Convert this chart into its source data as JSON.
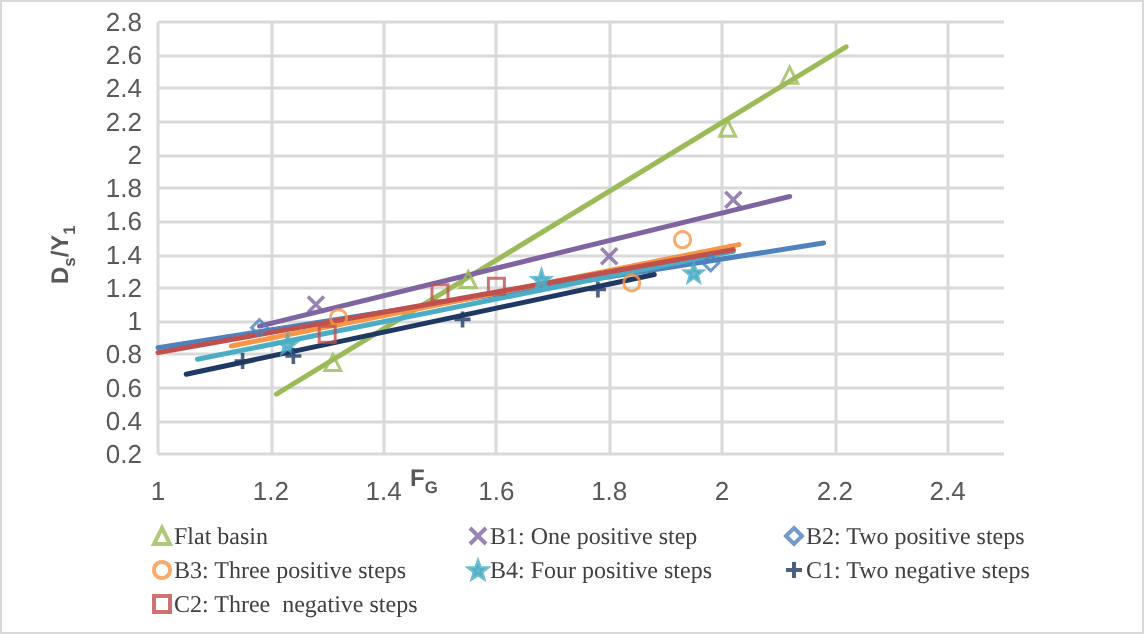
{
  "chart_data": {
    "type": "scatter",
    "xlabel": "F$_{G}$",
    "ylabel": "D$_{s}$/Y$_{1}$",
    "xlim": [
      1,
      2.5
    ],
    "xticks": [
      1,
      1.2,
      1.4,
      1.6,
      1.8,
      2,
      2.2,
      2.4
    ],
    "ylim": [
      0.2,
      2.8
    ],
    "yticks": [
      0.2,
      0.4,
      0.6,
      0.8,
      1,
      1.2,
      1.4,
      1.6,
      1.8,
      2,
      2.2,
      2.4,
      2.6,
      2.8
    ],
    "grid": true,
    "legend": "bottom",
    "series": [
      {
        "name": "Flat basin",
        "color": "#9bbb59",
        "marker": "triangle",
        "x": [
          1.31,
          1.55,
          2.01,
          2.12
        ],
        "values": [
          0.75,
          1.25,
          2.16,
          2.48
        ]
      },
      {
        "name": "B1: One positive step",
        "color": "#8064a2",
        "marker": "cross",
        "x": [
          1.28,
          1.8,
          2.02
        ],
        "values": [
          1.1,
          1.39,
          1.73
        ]
      },
      {
        "name": "B2: Two positive steps",
        "color": "#4f81bd",
        "marker": "diamond",
        "x": [
          1.18,
          1.98
        ],
        "values": [
          0.96,
          1.35
        ]
      },
      {
        "name": "B3: Three positive steps",
        "color": "#f79646",
        "marker": "circle",
        "x": [
          1.32,
          1.84,
          1.93
        ],
        "values": [
          1.02,
          1.23,
          1.49
        ]
      },
      {
        "name": "B4: Four positive steps",
        "color": "#4bacc6",
        "marker": "star",
        "x": [
          1.23,
          1.68,
          1.95
        ],
        "values": [
          0.86,
          1.25,
          1.29
        ]
      },
      {
        "name": "C1: Two negative steps",
        "color": "#1f3864",
        "marker": "plus",
        "x": [
          1.15,
          1.24,
          1.54,
          1.78
        ],
        "values": [
          0.76,
          0.79,
          1.01,
          1.19
        ]
      },
      {
        "name": "C2: Three  negative steps",
        "color": "#c0504d",
        "marker": "square",
        "x": [
          1.3,
          1.5,
          1.6
        ],
        "values": [
          0.92,
          1.17,
          1.21
        ]
      },
      {
        "type": "line",
        "color": "#9bbb59",
        "marker": "none",
        "x": [
          1.21,
          2.22
        ],
        "values": [
          0.56,
          2.65
        ]
      },
      {
        "type": "line",
        "color": "#8064a2",
        "marker": "none",
        "x": [
          1.18,
          2.12
        ],
        "values": [
          0.97,
          1.75
        ]
      },
      {
        "type": "line",
        "color": "#4f81bd",
        "marker": "none",
        "x": [
          1,
          2.18
        ],
        "values": [
          0.84,
          1.47
        ]
      },
      {
        "type": "line",
        "color": "#f79646",
        "marker": "none",
        "x": [
          1.13,
          2.03
        ],
        "values": [
          0.85,
          1.46
        ]
      },
      {
        "type": "line",
        "color": "#4bacc6",
        "marker": "none",
        "x": [
          1.07,
          2.02
        ],
        "values": [
          0.77,
          1.42
        ]
      },
      {
        "type": "line",
        "color": "#1f3864",
        "marker": "none",
        "x": [
          1.05,
          1.88
        ],
        "values": [
          0.68,
          1.28
        ]
      },
      {
        "type": "line",
        "color": "#c0504d",
        "marker": "none",
        "x": [
          1,
          2.02
        ],
        "values": [
          0.81,
          1.43
        ]
      }
    ]
  }
}
